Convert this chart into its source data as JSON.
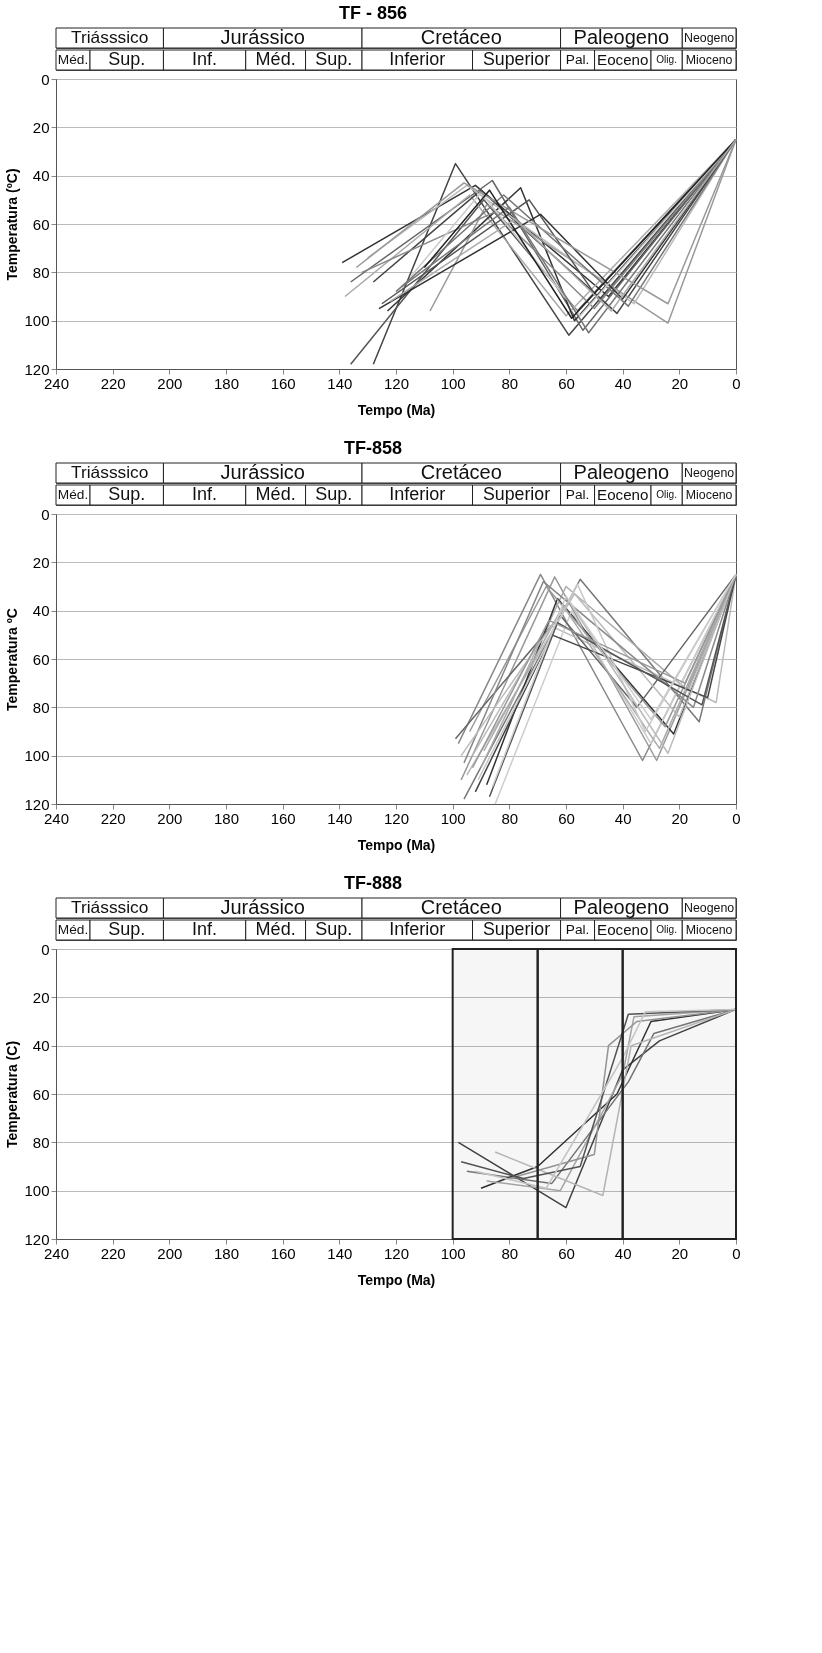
{
  "chart_data": [
    {
      "type": "line",
      "title": "TF - 856",
      "xlabel": "Tempo (Ma)",
      "ylabel": "Temperatura (ºC)",
      "xlim": [
        240,
        0
      ],
      "ylim": [
        120,
        0
      ],
      "xticks": [
        240,
        220,
        200,
        180,
        160,
        140,
        120,
        100,
        80,
        60,
        40,
        20,
        0
      ],
      "yticks": [
        0,
        20,
        40,
        60,
        80,
        100,
        120
      ],
      "grid": "y",
      "annotations": [
        "Triásssico",
        "Jurássico",
        "Cretáceo",
        "Paleogeno",
        "Neogeno",
        "Méd.",
        "Sup.",
        "Inf.",
        "Méd.",
        "Sup.",
        "Inferior",
        "Superior",
        "Pal.",
        "Eoceno",
        "Olig.",
        "Mioceno"
      ],
      "series": [
        {
          "color": "#444444",
          "x": [
            128,
            99,
            59,
            0
          ],
          "values": [
            118,
            35,
            106,
            25
          ]
        },
        {
          "color": "#555555",
          "x": [
            136,
            89,
            56,
            0
          ],
          "values": [
            118,
            50,
            96,
            25
          ]
        },
        {
          "color": "#333333",
          "x": [
            139,
            92,
            45,
            0
          ],
          "values": [
            76,
            44,
            90,
            25
          ]
        },
        {
          "color": "#666666",
          "x": [
            136,
            86,
            54,
            0
          ],
          "values": [
            84,
            42,
            104,
            25
          ]
        },
        {
          "color": "#aaaaaa",
          "x": [
            138,
            94,
            60,
            0
          ],
          "values": [
            90,
            48,
            98,
            25
          ]
        },
        {
          "color": "#444444",
          "x": [
            128,
            90,
            42,
            0
          ],
          "values": [
            84,
            46,
            97,
            25
          ]
        },
        {
          "color": "#333333",
          "x": [
            123,
            76,
            57,
            0
          ],
          "values": [
            96,
            45,
            100,
            25
          ]
        },
        {
          "color": "#999999",
          "x": [
            108,
            88,
            24,
            0
          ],
          "values": [
            96,
            52,
            101,
            25
          ]
        },
        {
          "color": "#bbbbbb",
          "x": [
            130,
            95,
            36,
            0
          ],
          "values": [
            74,
            44,
            93,
            25
          ]
        },
        {
          "color": "#555555",
          "x": [
            125,
            73,
            48,
            0
          ],
          "values": [
            93,
            50,
            92,
            25
          ]
        },
        {
          "color": "#888888",
          "x": [
            132,
            85,
            50,
            0
          ],
          "values": [
            80,
            55,
            95,
            25
          ]
        },
        {
          "color": "#777777",
          "x": [
            120,
            82,
            38,
            0
          ],
          "values": [
            88,
            48,
            94,
            25
          ]
        },
        {
          "color": "#333333",
          "x": [
            126,
            69,
            40,
            0
          ],
          "values": [
            95,
            56,
            91,
            25
          ]
        },
        {
          "color": "#cccccc",
          "x": [
            115,
            90,
            55,
            0
          ],
          "values": [
            82,
            47,
            98,
            25
          ]
        },
        {
          "color": "#999999",
          "x": [
            134,
            96,
            24,
            0
          ],
          "values": [
            78,
            43,
            93,
            25
          ]
        },
        {
          "color": "#777777",
          "x": [
            118,
            80,
            52,
            0
          ],
          "values": [
            86,
            53,
            105,
            25
          ]
        },
        {
          "color": "#222222",
          "x": [
            110,
            87,
            58,
            0
          ],
          "values": [
            78,
            46,
            99,
            25
          ]
        },
        {
          "color": "#aaaaaa",
          "x": [
            122,
            78,
            44,
            0
          ],
          "values": [
            92,
            58,
            96,
            25
          ]
        }
      ]
    },
    {
      "type": "line",
      "title": "TF-858",
      "xlabel": "Tempo (Ma)",
      "ylabel": "Temperatura ºC",
      "xlim": [
        240,
        0
      ],
      "ylim": [
        120,
        0
      ],
      "xticks": [
        240,
        220,
        200,
        180,
        160,
        140,
        120,
        100,
        80,
        60,
        40,
        20,
        0
      ],
      "yticks": [
        0,
        20,
        40,
        60,
        80,
        100,
        120
      ],
      "grid": "y",
      "annotations": [
        "Triásssico",
        "Jurássico",
        "Cretáceo",
        "Paleogeno",
        "Neogeno",
        "Méd.",
        "Sup.",
        "Inf.",
        "Méd.",
        "Sup.",
        "Inferior",
        "Superior",
        "Pal.",
        "Eoceno",
        "Olig.",
        "Mioceno"
      ],
      "series": [
        {
          "color": "#888888",
          "x": [
            98,
            69,
            33,
            0
          ],
          "values": [
            95,
            25,
            102,
            25
          ]
        },
        {
          "color": "#999999",
          "x": [
            97,
            64,
            28,
            0
          ],
          "values": [
            110,
            26,
            102,
            25
          ]
        },
        {
          "color": "#777777",
          "x": [
            96,
            55,
            13,
            0
          ],
          "values": [
            118,
            27,
            86,
            25
          ]
        },
        {
          "color": "#bbbbbb",
          "x": [
            93,
            66,
            7,
            0
          ],
          "values": [
            100,
            46,
            78,
            25
          ]
        },
        {
          "color": "#aaaaaa",
          "x": [
            90,
            60,
            17,
            0
          ],
          "values": [
            105,
            30,
            73,
            25
          ]
        },
        {
          "color": "#333333",
          "x": [
            88,
            63,
            22,
            0
          ],
          "values": [
            112,
            35,
            91,
            25
          ]
        },
        {
          "color": "#cccccc",
          "x": [
            85,
            58,
            30,
            0
          ],
          "values": [
            120,
            40,
            95,
            25
          ]
        },
        {
          "color": "#999999",
          "x": [
            94,
            67,
            25,
            0
          ],
          "values": [
            90,
            30,
            88,
            25
          ]
        },
        {
          "color": "#666666",
          "x": [
            99,
            62,
            35,
            0
          ],
          "values": [
            93,
            42,
            80,
            25
          ]
        },
        {
          "color": "#bbbbbb",
          "x": [
            95,
            57,
            20,
            0
          ],
          "values": [
            108,
            33,
            84,
            25
          ]
        },
        {
          "color": "#444444",
          "x": [
            92,
            65,
            10,
            0
          ],
          "values": [
            115,
            50,
            76,
            25
          ]
        },
        {
          "color": "#aaaaaa",
          "x": [
            89,
            61,
            27,
            0
          ],
          "values": [
            98,
            38,
            97,
            25
          ]
        },
        {
          "color": "#888888",
          "x": [
            96,
            68,
            15,
            0
          ],
          "values": [
            103,
            28,
            80,
            25
          ]
        },
        {
          "color": "#c8c8c8",
          "x": [
            91,
            56,
            32,
            0
          ],
          "values": [
            110,
            29,
            90,
            25
          ]
        },
        {
          "color": "#555555",
          "x": [
            87,
            63,
            12,
            0
          ],
          "values": [
            117,
            45,
            79,
            25
          ]
        },
        {
          "color": "#bbbbbb",
          "x": [
            97,
            59,
            24,
            0
          ],
          "values": [
            100,
            36,
            99,
            25
          ]
        },
        {
          "color": "#999999",
          "x": [
            93,
            66,
            18,
            0
          ],
          "values": [
            105,
            44,
            70,
            25
          ]
        },
        {
          "color": "#cccccc",
          "x": [
            86,
            60,
            30,
            0
          ],
          "values": [
            113,
            34,
            85,
            25
          ]
        }
      ]
    },
    {
      "type": "line",
      "title": "TF-888",
      "xlabel": "Tempo (Ma)",
      "ylabel": "Temperatura (C)",
      "xlim": [
        240,
        0
      ],
      "ylim": [
        120,
        0
      ],
      "xticks": [
        240,
        220,
        200,
        180,
        160,
        140,
        120,
        100,
        80,
        60,
        40,
        20,
        0
      ],
      "yticks": [
        0,
        20,
        40,
        60,
        80,
        100,
        120
      ],
      "grid": "y",
      "annotations": [
        "Triásssico",
        "Jurássico",
        "Cretáceo",
        "Paleogeno",
        "Neogeno",
        "Méd.",
        "Sup.",
        "Inf.",
        "Méd.",
        "Sup.",
        "Inferior",
        "Superior",
        "Pal.",
        "Eoceno",
        "Olig.",
        "Mioceno"
      ],
      "bands": [
        {
          "axis": "x",
          "from": 100,
          "to": 70,
          "color": "#222222"
        },
        {
          "axis": "x",
          "from": 70,
          "to": 40,
          "color": "#222222"
        },
        {
          "axis": "x",
          "from": 40,
          "to": 0,
          "color": "#222222"
        }
      ],
      "series": [
        {
          "color": "#444444",
          "x": [
            98,
            60,
            40,
            27,
            0
          ],
          "values": [
            80,
            107,
            50,
            38,
            25
          ]
        },
        {
          "color": "#777777",
          "x": [
            95,
            65,
            38,
            29,
            0
          ],
          "values": [
            92,
            97,
            55,
            35,
            25
          ]
        },
        {
          "color": "#333333",
          "x": [
            90,
            70,
            42,
            30,
            0
          ],
          "values": [
            99,
            90,
            60,
            30,
            25
          ]
        },
        {
          "color": "#aaaaaa",
          "x": [
            88,
            62,
            40,
            36,
            0
          ],
          "values": [
            96,
            100,
            52,
            28,
            25
          ]
        },
        {
          "color": "#bbbbbb",
          "x": [
            85,
            47,
            37,
            0
          ],
          "values": [
            84,
            102,
            40,
            25
          ]
        },
        {
          "color": "#999999",
          "x": [
            80,
            50,
            45,
            35,
            0
          ],
          "values": [
            95,
            85,
            40,
            30,
            25
          ]
        },
        {
          "color": "#555555",
          "x": [
            97,
            75,
            55,
            38,
            0
          ],
          "values": [
            88,
            95,
            90,
            27,
            25
          ]
        },
        {
          "color": "#cccccc",
          "x": [
            92,
            67,
            40,
            32,
            0
          ],
          "values": [
            92,
            99,
            45,
            26,
            25
          ]
        }
      ]
    }
  ]
}
